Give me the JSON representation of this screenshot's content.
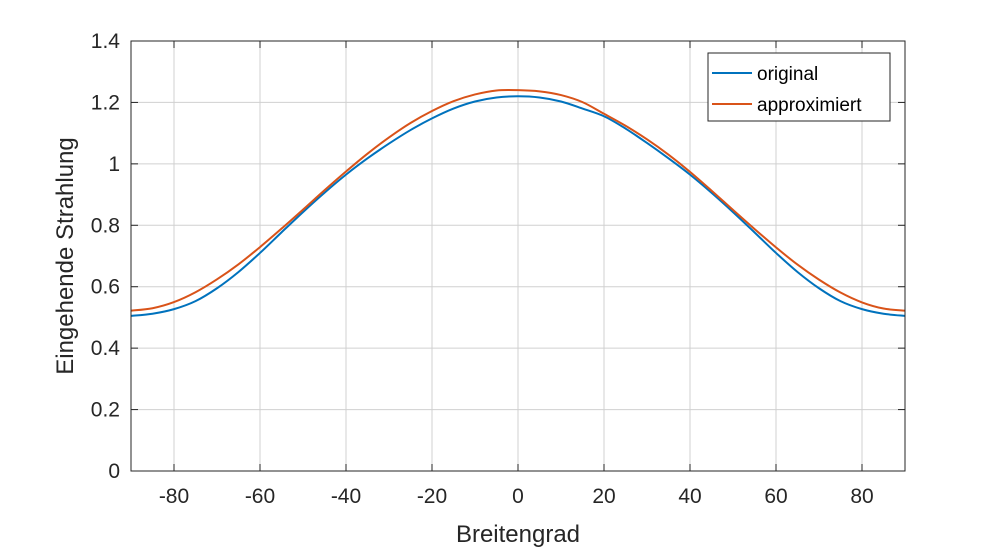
{
  "chart_data": {
    "type": "line",
    "title": "",
    "xlabel": "Breitengrad",
    "ylabel": "Eingehende Strahlung",
    "xlim": [
      -90,
      90
    ],
    "ylim": [
      0,
      1.4
    ],
    "xticks": [
      -80,
      -60,
      -40,
      -20,
      0,
      20,
      40,
      60,
      80
    ],
    "yticks": [
      0,
      0.2,
      0.4,
      0.6,
      0.8,
      1,
      1.2,
      1.4
    ],
    "grid": true,
    "legend_position": "top-right",
    "x": [
      -90,
      -85,
      -80,
      -75,
      -70,
      -65,
      -60,
      -55,
      -50,
      -45,
      -40,
      -35,
      -30,
      -25,
      -20,
      -15,
      -10,
      -5,
      0,
      5,
      10,
      15,
      20,
      25,
      30,
      35,
      40,
      45,
      50,
      55,
      60,
      65,
      70,
      75,
      80,
      85,
      90
    ],
    "series": [
      {
        "name": "original",
        "color": "#0072BD",
        "values": [
          0.505,
          0.512,
          0.527,
          0.553,
          0.595,
          0.648,
          0.71,
          0.777,
          0.843,
          0.906,
          0.965,
          1.018,
          1.066,
          1.11,
          1.148,
          1.18,
          1.203,
          1.216,
          1.22,
          1.216,
          1.203,
          1.18,
          1.155,
          1.115,
          1.068,
          1.018,
          0.965,
          0.906,
          0.843,
          0.777,
          0.71,
          0.648,
          0.595,
          0.553,
          0.527,
          0.512,
          0.505
        ]
      },
      {
        "name": "approximiert",
        "color": "#D95319",
        "values": [
          0.522,
          0.53,
          0.55,
          0.582,
          0.624,
          0.673,
          0.729,
          0.789,
          0.851,
          0.914,
          0.975,
          1.033,
          1.086,
          1.133,
          1.172,
          1.204,
          1.226,
          1.239,
          1.24,
          1.236,
          1.224,
          1.201,
          1.163,
          1.124,
          1.08,
          1.03,
          0.974,
          0.913,
          0.85,
          0.788,
          0.728,
          0.672,
          0.623,
          0.581,
          0.549,
          0.529,
          0.522
        ]
      }
    ]
  }
}
